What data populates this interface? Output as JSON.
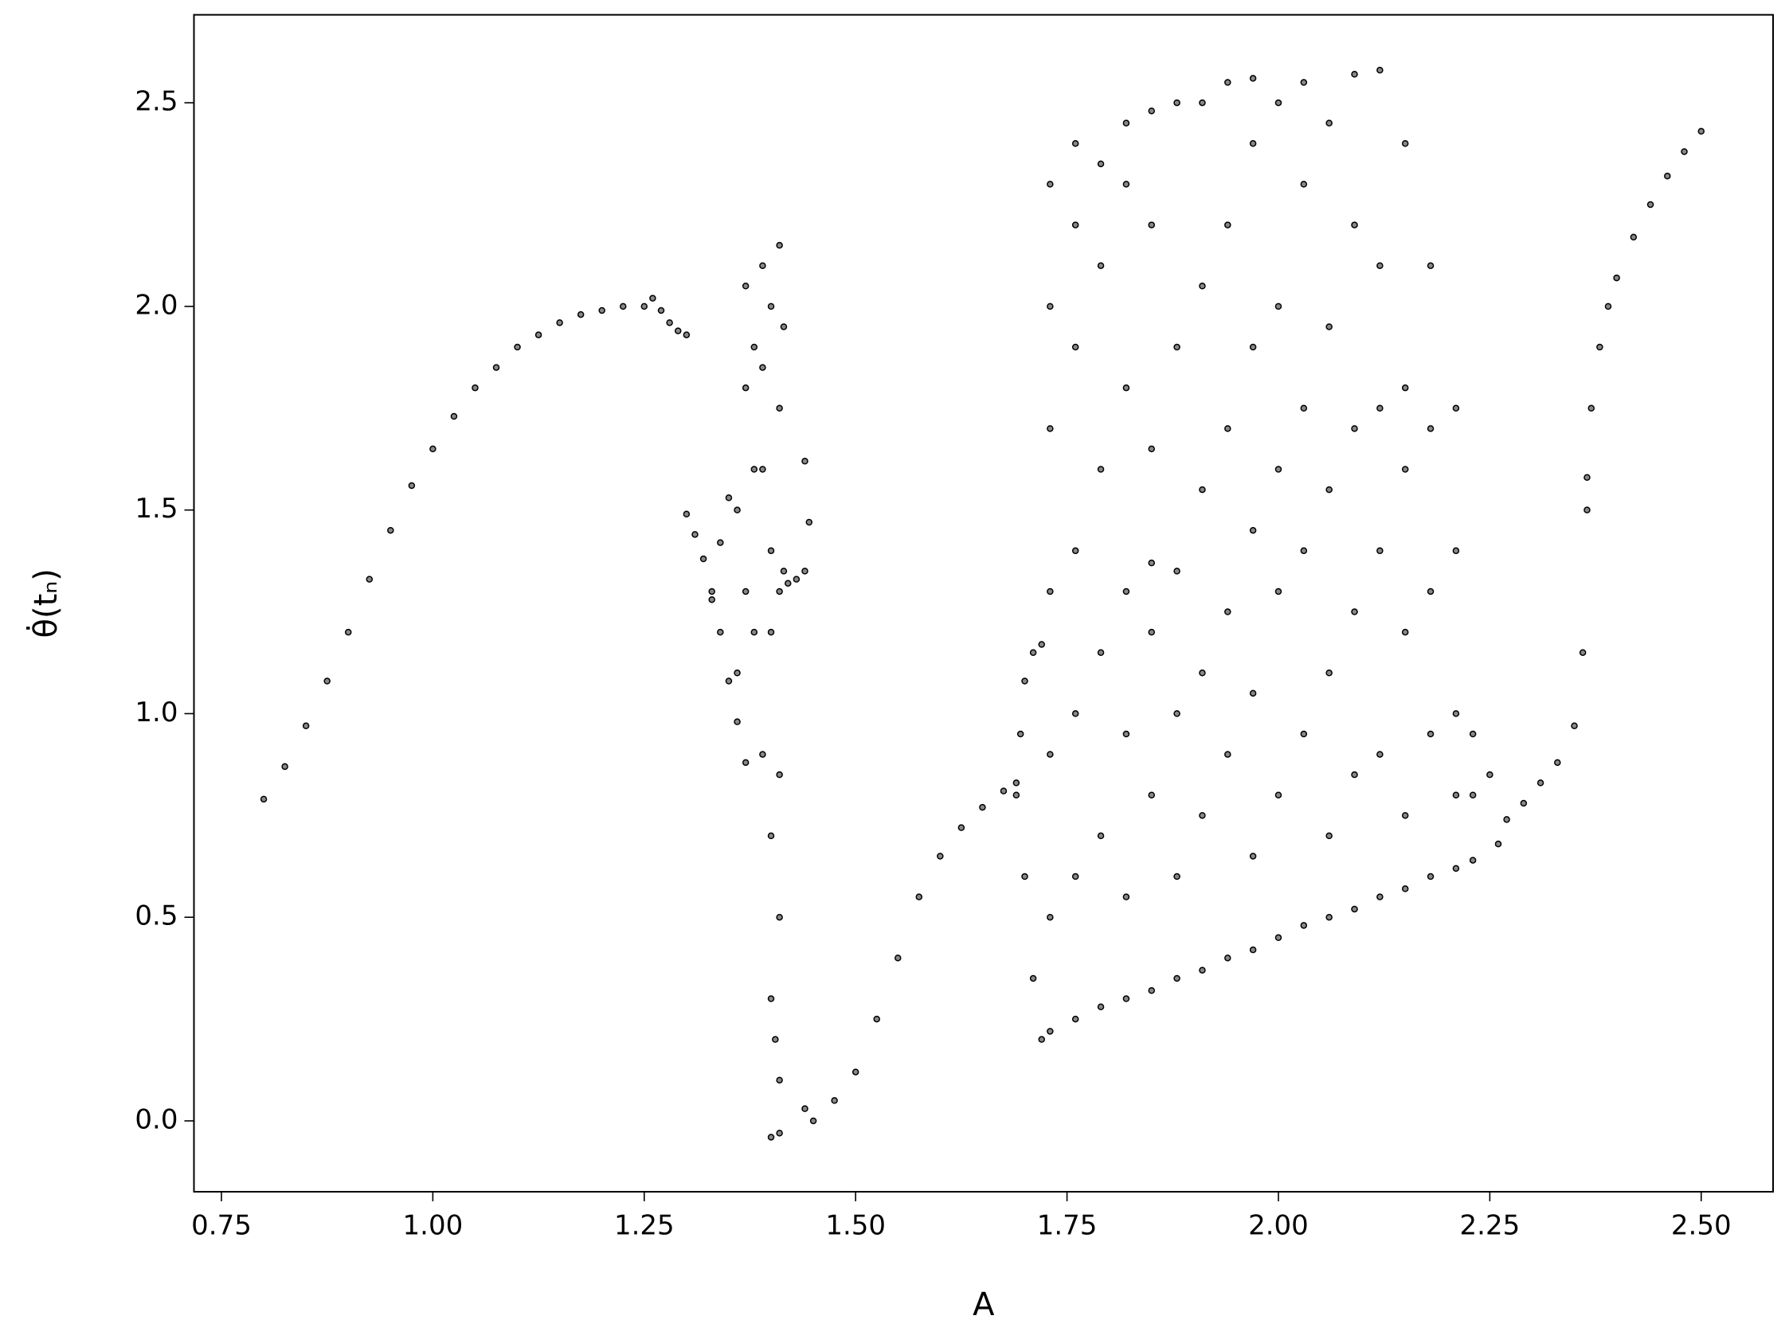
{
  "chart_data": {
    "type": "scatter",
    "xlabel": "A",
    "ylabel": "θ̇(tₙ)",
    "color": "#000000",
    "xlim": [
      0.7175,
      2.585
    ],
    "ylim": [
      -0.174,
      2.716
    ],
    "xticks": [
      0.75,
      {
        "value": 1,
        "label": "1.00"
      },
      1.25,
      {
        "value": 1.5,
        "label": "1.50"
      },
      1.75,
      {
        "value": 2,
        "label": "2.00"
      },
      2.25,
      {
        "value": 2.5,
        "label": "2.50"
      }
    ],
    "yticks": [
      {
        "value": 0,
        "label": "0.0"
      },
      0.5,
      {
        "value": 1,
        "label": "1.0"
      },
      1.5,
      {
        "value": 2,
        "label": "2.0"
      },
      2.5
    ],
    "x": [
      0.8,
      0.825,
      0.85,
      0.875,
      0.9,
      0.925,
      0.95,
      0.975,
      1.0,
      1.025,
      1.05,
      1.075,
      1.1,
      1.125,
      1.15,
      1.175,
      1.2,
      1.225,
      1.25,
      1.26,
      1.27,
      1.28,
      1.29,
      1.3,
      1.3,
      1.31,
      1.32,
      1.33,
      1.34,
      1.35,
      1.36,
      1.37,
      1.33,
      1.34,
      1.35,
      1.36,
      1.37,
      1.37,
      1.38,
      1.38,
      1.39,
      1.39,
      1.39,
      1.4,
      1.4,
      1.4,
      1.4,
      1.4,
      1.41,
      1.41,
      1.41,
      1.41,
      1.41,
      1.41,
      1.415,
      1.415,
      1.405,
      1.36,
      1.37,
      1.38,
      1.39,
      1.4,
      1.41,
      1.42,
      1.43,
      1.44,
      1.445,
      1.44,
      1.44,
      1.45,
      1.475,
      1.5,
      1.525,
      1.55,
      1.575,
      1.6,
      1.625,
      1.65,
      1.675,
      1.69,
      1.695,
      1.7,
      1.71,
      1.72,
      1.69,
      1.7,
      1.71,
      1.72,
      1.73,
      1.73,
      1.73,
      1.73,
      1.73,
      1.73,
      1.73,
      1.76,
      1.76,
      1.76,
      1.76,
      1.76,
      1.76,
      1.76,
      1.79,
      1.79,
      1.79,
      1.79,
      1.79,
      1.79,
      1.82,
      1.82,
      1.82,
      1.82,
      1.82,
      1.82,
      1.82,
      1.85,
      1.85,
      1.85,
      1.85,
      1.85,
      1.85,
      1.85,
      1.88,
      1.88,
      1.88,
      1.88,
      1.88,
      1.88,
      1.91,
      1.91,
      1.91,
      1.91,
      1.91,
      1.91,
      1.94,
      1.94,
      1.94,
      1.94,
      1.94,
      1.94,
      1.97,
      1.97,
      1.97,
      1.97,
      1.97,
      1.97,
      1.97,
      2.0,
      2.0,
      2.0,
      2.0,
      2.0,
      2.0,
      2.03,
      2.03,
      2.03,
      2.03,
      2.03,
      2.03,
      2.06,
      2.06,
      2.06,
      2.06,
      2.06,
      2.06,
      2.09,
      2.09,
      2.09,
      2.09,
      2.09,
      2.09,
      2.12,
      2.12,
      2.12,
      2.12,
      2.12,
      2.12,
      2.15,
      2.15,
      2.15,
      2.15,
      2.15,
      2.15,
      2.18,
      2.18,
      2.18,
      2.18,
      2.18,
      2.21,
      2.21,
      2.21,
      2.21,
      2.21,
      2.23,
      2.23,
      2.23,
      2.25,
      2.26,
      2.27,
      2.29,
      2.31,
      2.33,
      2.35,
      2.36,
      2.365,
      2.365,
      2.37,
      2.38,
      2.39,
      2.4,
      2.42,
      2.44,
      2.46,
      2.48,
      2.5
    ],
    "values": [
      0.79,
      0.87,
      0.97,
      1.08,
      1.2,
      1.33,
      1.45,
      1.56,
      1.65,
      1.73,
      1.8,
      1.85,
      1.9,
      1.93,
      1.96,
      1.98,
      1.99,
      2.0,
      2.0,
      2.02,
      1.99,
      1.96,
      1.94,
      1.93,
      1.49,
      1.44,
      1.38,
      1.3,
      1.2,
      1.08,
      0.98,
      0.88,
      1.28,
      1.42,
      1.53,
      1.5,
      1.8,
      2.05,
      1.9,
      1.2,
      2.1,
      1.6,
      0.9,
      2.0,
      1.4,
      0.7,
      0.3,
      -0.04,
      2.15,
      1.75,
      1.3,
      0.5,
      0.1,
      -0.03,
      1.95,
      1.35,
      0.2,
      1.1,
      1.3,
      1.6,
      1.85,
      1.2,
      0.85,
      1.32,
      1.33,
      1.35,
      1.47,
      1.62,
      0.03,
      0.0,
      0.05,
      0.12,
      0.25,
      0.4,
      0.55,
      0.65,
      0.72,
      0.77,
      0.81,
      0.83,
      0.95,
      1.08,
      1.15,
      1.17,
      0.8,
      0.6,
      0.35,
      0.2,
      0.22,
      0.5,
      0.9,
      1.3,
      1.7,
      2.0,
      2.3,
      0.25,
      0.6,
      1.0,
      1.4,
      1.9,
      2.2,
      2.4,
      0.28,
      0.7,
      1.15,
      1.6,
      2.1,
      2.35,
      0.3,
      0.55,
      0.95,
      1.3,
      1.8,
      2.3,
      2.45,
      0.32,
      0.8,
      1.2,
      1.37,
      1.65,
      2.2,
      2.48,
      0.35,
      0.6,
      1.0,
      1.35,
      1.9,
      2.5,
      0.37,
      0.75,
      1.1,
      1.55,
      2.05,
      2.5,
      0.4,
      0.9,
      1.25,
      1.7,
      2.2,
      2.55,
      0.42,
      0.65,
      1.05,
      1.45,
      1.9,
      2.4,
      2.56,
      0.45,
      0.8,
      1.3,
      1.6,
      2.0,
      2.5,
      0.48,
      0.95,
      1.4,
      1.75,
      2.3,
      2.55,
      0.5,
      0.7,
      1.1,
      1.55,
      1.95,
      2.45,
      0.52,
      0.85,
      1.25,
      1.7,
      2.2,
      2.57,
      0.55,
      0.9,
      1.4,
      1.75,
      2.1,
      2.58,
      0.57,
      0.75,
      1.2,
      1.6,
      1.8,
      2.4,
      0.6,
      0.95,
      1.3,
      1.7,
      2.1,
      0.62,
      0.8,
      1.0,
      1.4,
      1.75,
      0.64,
      0.8,
      0.95,
      0.85,
      0.68,
      0.74,
      0.78,
      0.83,
      0.88,
      0.97,
      1.15,
      1.5,
      1.58,
      1.75,
      1.9,
      2.0,
      2.07,
      2.17,
      2.25,
      2.32,
      2.38,
      2.43
    ]
  }
}
